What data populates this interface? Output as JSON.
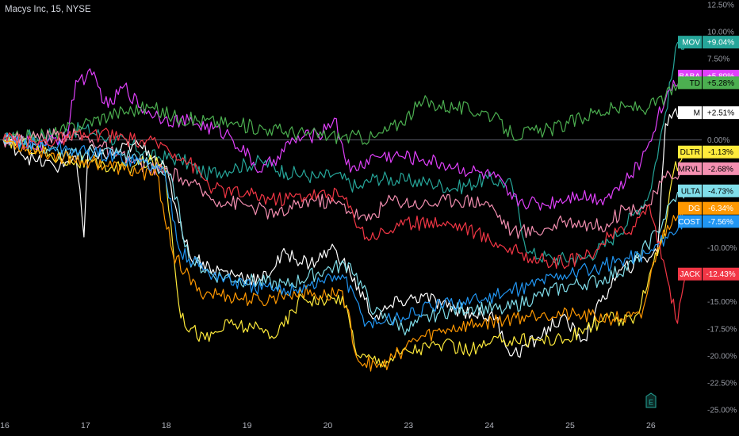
{
  "header": {
    "title": "Macys Inc, 15, NYSE"
  },
  "colors": {
    "background": "#000000",
    "zero_line": "#5d606b",
    "axis_text": "#9598a1"
  },
  "icons": {
    "bottom": "e-flag-icon"
  },
  "chart_data": {
    "type": "line",
    "title": "Macys Inc, 15, NYSE",
    "xlabel": "",
    "ylabel": "",
    "ylim": [
      -25,
      12.5
    ],
    "grid": false,
    "x_tick_labels": [
      "16",
      "17",
      "18",
      "19",
      "20",
      "23",
      "24",
      "25",
      "26"
    ],
    "x_tick_pos": [
      0,
      1,
      2,
      3,
      4,
      5,
      6,
      7,
      8
    ],
    "xlim": [
      0,
      8.6
    ],
    "y_tick_labels": [
      "12.50%",
      "10.00%",
      "7.50%",
      "0.00%",
      "-10.00%",
      "-15.00%",
      "-17.50%",
      "-20.00%",
      "-22.50%",
      "-25.00%"
    ],
    "y_tick_values": [
      12.5,
      10,
      7.5,
      0,
      -10,
      -15,
      -17.5,
      -20,
      -22.5,
      -25
    ],
    "series": [
      {
        "name": "MOV",
        "label": "+9.04%",
        "last": 9.04,
        "color": "#26a69a",
        "points": [
          [
            0,
            0
          ],
          [
            0.3,
            0.3
          ],
          [
            0.7,
            0.6
          ],
          [
            1.0,
            1.0
          ],
          [
            1.3,
            0.2
          ],
          [
            1.6,
            -0.5
          ],
          [
            1.8,
            -1.5
          ],
          [
            2.2,
            -1.8
          ],
          [
            2.5,
            -3.2
          ],
          [
            2.9,
            -2.5
          ],
          [
            3.2,
            -2.0
          ],
          [
            3.5,
            -3.0
          ],
          [
            3.9,
            -3.5
          ],
          [
            4.1,
            -3.2
          ],
          [
            4.4,
            -4.5
          ],
          [
            4.6,
            -3.5
          ],
          [
            5.0,
            -3.8
          ],
          [
            5.3,
            -4.0
          ],
          [
            5.6,
            -4.5
          ],
          [
            6.0,
            -3.6
          ],
          [
            6.3,
            -4.2
          ],
          [
            6.5,
            -10.5
          ],
          [
            6.8,
            -11.0
          ],
          [
            7.2,
            -11.0
          ],
          [
            7.5,
            -9.5
          ],
          [
            7.8,
            -7.0
          ],
          [
            8.0,
            -5.0
          ],
          [
            8.2,
            2.5
          ],
          [
            8.35,
            9.0
          ],
          [
            8.45,
            9.04
          ]
        ]
      },
      {
        "name": "BABA",
        "label": "+5.89%",
        "last": 5.89,
        "color": "#e040fb",
        "points": [
          [
            0,
            0
          ],
          [
            0.5,
            -0.5
          ],
          [
            0.8,
            0.5
          ],
          [
            0.9,
            5.5
          ],
          [
            1.1,
            6.0
          ],
          [
            1.3,
            3.0
          ],
          [
            1.5,
            5.0
          ],
          [
            1.7,
            3.0
          ],
          [
            2.0,
            2.0
          ],
          [
            2.4,
            1.5
          ],
          [
            2.8,
            0.5
          ],
          [
            3.2,
            -3.0
          ],
          [
            3.4,
            -1.5
          ],
          [
            3.6,
            0.0
          ],
          [
            3.9,
            0.5
          ],
          [
            4.1,
            2.0
          ],
          [
            4.3,
            -3.0
          ],
          [
            4.6,
            -1.5
          ],
          [
            4.9,
            -1.5
          ],
          [
            5.2,
            -1.8
          ],
          [
            5.6,
            -2.5
          ],
          [
            6.1,
            -3.5
          ],
          [
            6.3,
            -5.5
          ],
          [
            6.7,
            -6.0
          ],
          [
            7.1,
            -5.0
          ],
          [
            7.4,
            -5.5
          ],
          [
            7.7,
            -4.0
          ],
          [
            7.9,
            -2.0
          ],
          [
            8.1,
            2.0
          ],
          [
            8.3,
            5.5
          ],
          [
            8.45,
            5.89
          ]
        ]
      },
      {
        "name": "TD",
        "label": "+5.28%",
        "last": 5.28,
        "color": "#4caf50",
        "points": [
          [
            0,
            0
          ],
          [
            0.6,
            0.5
          ],
          [
            1.0,
            1.5
          ],
          [
            1.4,
            2.5
          ],
          [
            1.8,
            3.0
          ],
          [
            2.2,
            2.0
          ],
          [
            2.8,
            1.5
          ],
          [
            3.3,
            1.0
          ],
          [
            3.8,
            0.5
          ],
          [
            4.2,
            0.3
          ],
          [
            4.6,
            0.2
          ],
          [
            4.9,
            1.5
          ],
          [
            5.2,
            3.5
          ],
          [
            5.6,
            3.0
          ],
          [
            6.0,
            2.5
          ],
          [
            6.3,
            0.5
          ],
          [
            6.7,
            0.8
          ],
          [
            7.0,
            1.5
          ],
          [
            7.3,
            2.5
          ],
          [
            7.7,
            3.0
          ],
          [
            8.0,
            3.0
          ],
          [
            8.2,
            4.0
          ],
          [
            8.35,
            5.0
          ],
          [
            8.45,
            5.28
          ]
        ]
      },
      {
        "name": "M",
        "label": "+2.51%",
        "last": 2.51,
        "color": "#ffffff",
        "points": [
          [
            0,
            0
          ],
          [
            0.2,
            -1.0
          ],
          [
            0.4,
            -2.0
          ],
          [
            0.7,
            -2.5
          ],
          [
            0.9,
            -1.5
          ],
          [
            1.0,
            -9.0
          ],
          [
            1.05,
            -1.0
          ],
          [
            1.3,
            -1.5
          ],
          [
            1.6,
            -0.5
          ],
          [
            1.8,
            -1.0
          ],
          [
            2.0,
            -2.5
          ],
          [
            2.3,
            -10.5
          ],
          [
            2.6,
            -12.0
          ],
          [
            2.9,
            -12.5
          ],
          [
            3.2,
            -13.0
          ],
          [
            3.5,
            -10.5
          ],
          [
            3.8,
            -11.5
          ],
          [
            4.1,
            -10.0
          ],
          [
            4.3,
            -12.5
          ],
          [
            4.6,
            -16.5
          ],
          [
            4.9,
            -15.0
          ],
          [
            5.2,
            -14.5
          ],
          [
            5.5,
            -15.5
          ],
          [
            5.8,
            -16.0
          ],
          [
            6.1,
            -16.5
          ],
          [
            6.3,
            -20.0
          ],
          [
            6.6,
            -18.5
          ],
          [
            6.9,
            -16.5
          ],
          [
            7.2,
            -18.5
          ],
          [
            7.4,
            -15.0
          ],
          [
            7.6,
            -12.5
          ],
          [
            7.9,
            -11.0
          ],
          [
            8.1,
            -10.5
          ],
          [
            8.2,
            1.5
          ],
          [
            8.3,
            2.5
          ],
          [
            8.45,
            2.51
          ]
        ]
      },
      {
        "name": "DLTR",
        "label": "-1.13%",
        "last": -1.13,
        "color": "#ffeb3b",
        "points": [
          [
            0,
            0
          ],
          [
            0.3,
            -0.5
          ],
          [
            0.6,
            -1.5
          ],
          [
            0.9,
            -2.0
          ],
          [
            1.2,
            -2.5
          ],
          [
            1.6,
            -2.5
          ],
          [
            1.8,
            -2.0
          ],
          [
            2.0,
            -2.5
          ],
          [
            2.2,
            -16.5
          ],
          [
            2.5,
            -18.5
          ],
          [
            2.8,
            -17.0
          ],
          [
            3.1,
            -17.5
          ],
          [
            3.4,
            -18.0
          ],
          [
            3.7,
            -14.5
          ],
          [
            4.0,
            -15.0
          ],
          [
            4.2,
            -14.5
          ],
          [
            4.4,
            -20.0
          ],
          [
            4.7,
            -20.5
          ],
          [
            5.0,
            -19.5
          ],
          [
            5.4,
            -19.0
          ],
          [
            5.8,
            -19.5
          ],
          [
            6.2,
            -18.5
          ],
          [
            6.6,
            -18.5
          ],
          [
            7.0,
            -18.5
          ],
          [
            7.2,
            -17.5
          ],
          [
            7.5,
            -16.5
          ],
          [
            7.8,
            -17.0
          ],
          [
            8.0,
            -12.5
          ],
          [
            8.2,
            -8.0
          ],
          [
            8.3,
            -3.0
          ],
          [
            8.45,
            -1.13
          ]
        ]
      },
      {
        "name": "MRVL",
        "label": "-2.68%",
        "last": -2.68,
        "color": "#f48fb1",
        "points": [
          [
            0,
            0
          ],
          [
            0.4,
            0.2
          ],
          [
            0.8,
            0.5
          ],
          [
            1.1,
            0.0
          ],
          [
            1.4,
            -1.5
          ],
          [
            1.8,
            -2.5
          ],
          [
            2.2,
            -3.5
          ],
          [
            2.6,
            -5.5
          ],
          [
            3.0,
            -6.0
          ],
          [
            3.4,
            -7.0
          ],
          [
            3.8,
            -5.5
          ],
          [
            4.2,
            -6.0
          ],
          [
            4.5,
            -7.5
          ],
          [
            4.8,
            -5.5
          ],
          [
            5.2,
            -6.0
          ],
          [
            5.6,
            -5.5
          ],
          [
            6.0,
            -5.8
          ],
          [
            6.3,
            -8.5
          ],
          [
            6.6,
            -8.5
          ],
          [
            7.0,
            -7.5
          ],
          [
            7.4,
            -8.0
          ],
          [
            7.7,
            -6.5
          ],
          [
            8.0,
            -6.0
          ],
          [
            8.2,
            -3.5
          ],
          [
            8.45,
            -2.68
          ]
        ]
      },
      {
        "name": "ULTA",
        "label": "-4.73%",
        "last": -4.73,
        "color": "#80deea",
        "points": [
          [
            0,
            0
          ],
          [
            0.4,
            -0.5
          ],
          [
            0.8,
            -1.5
          ],
          [
            1.2,
            -1.0
          ],
          [
            1.6,
            -1.5
          ],
          [
            1.9,
            -2.5
          ],
          [
            2.1,
            -4.0
          ],
          [
            2.3,
            -11.0
          ],
          [
            2.6,
            -12.5
          ],
          [
            3.0,
            -13.0
          ],
          [
            3.5,
            -13.5
          ],
          [
            4.0,
            -12.0
          ],
          [
            4.3,
            -11.5
          ],
          [
            4.6,
            -16.0
          ],
          [
            5.0,
            -17.5
          ],
          [
            5.4,
            -16.0
          ],
          [
            5.8,
            -15.5
          ],
          [
            6.2,
            -15.8
          ],
          [
            6.6,
            -14.5
          ],
          [
            7.0,
            -13.5
          ],
          [
            7.4,
            -13.0
          ],
          [
            7.8,
            -11.5
          ],
          [
            8.1,
            -8.5
          ],
          [
            8.3,
            -5.5
          ],
          [
            8.45,
            -4.73
          ]
        ]
      },
      {
        "name": "DG",
        "label": "-6.34%",
        "last": -6.34,
        "color": "#ff9800",
        "points": [
          [
            0,
            0
          ],
          [
            0.3,
            -0.8
          ],
          [
            0.7,
            -1.5
          ],
          [
            1.1,
            -2.0
          ],
          [
            1.5,
            -2.8
          ],
          [
            1.9,
            -3.2
          ],
          [
            2.1,
            -10.5
          ],
          [
            2.4,
            -14.0
          ],
          [
            2.8,
            -14.5
          ],
          [
            3.2,
            -15.0
          ],
          [
            3.6,
            -14.0
          ],
          [
            4.0,
            -14.5
          ],
          [
            4.2,
            -14.0
          ],
          [
            4.4,
            -20.5
          ],
          [
            4.7,
            -21.0
          ],
          [
            5.1,
            -18.5
          ],
          [
            5.5,
            -17.5
          ],
          [
            5.9,
            -17.0
          ],
          [
            6.3,
            -16.5
          ],
          [
            6.7,
            -16.0
          ],
          [
            7.1,
            -16.3
          ],
          [
            7.5,
            -16.5
          ],
          [
            7.9,
            -16.5
          ],
          [
            8.1,
            -10.0
          ],
          [
            8.3,
            -7.0
          ],
          [
            8.45,
            -6.34
          ]
        ]
      },
      {
        "name": "COST",
        "label": "-7.56%",
        "last": -7.56,
        "color": "#2196f3",
        "points": [
          [
            0,
            0
          ],
          [
            0.5,
            -0.5
          ],
          [
            0.9,
            -1.0
          ],
          [
            1.3,
            -1.5
          ],
          [
            1.7,
            -2.0
          ],
          [
            2.0,
            -3.0
          ],
          [
            2.2,
            -10.5
          ],
          [
            2.6,
            -12.5
          ],
          [
            3.0,
            -13.5
          ],
          [
            3.4,
            -14.0
          ],
          [
            3.8,
            -13.5
          ],
          [
            4.2,
            -12.5
          ],
          [
            4.5,
            -17.0
          ],
          [
            4.9,
            -16.5
          ],
          [
            5.3,
            -15.5
          ],
          [
            5.7,
            -15.0
          ],
          [
            6.1,
            -14.5
          ],
          [
            6.5,
            -13.5
          ],
          [
            6.9,
            -12.5
          ],
          [
            7.3,
            -12.0
          ],
          [
            7.7,
            -11.0
          ],
          [
            8.0,
            -10.5
          ],
          [
            8.2,
            -9.0
          ],
          [
            8.45,
            -7.56
          ]
        ]
      },
      {
        "name": "JACK",
        "label": "-12.43%",
        "last": -12.43,
        "color": "#f23645",
        "points": [
          [
            0,
            0
          ],
          [
            0.4,
            -0.3
          ],
          [
            0.8,
            0.2
          ],
          [
            1.2,
            0.5
          ],
          [
            1.6,
            0.0
          ],
          [
            2.0,
            -0.5
          ],
          [
            2.3,
            -2.0
          ],
          [
            2.6,
            -4.5
          ],
          [
            3.0,
            -5.0
          ],
          [
            3.4,
            -5.5
          ],
          [
            3.8,
            -5.0
          ],
          [
            4.2,
            -5.2
          ],
          [
            4.5,
            -9.0
          ],
          [
            4.9,
            -8.0
          ],
          [
            5.3,
            -7.5
          ],
          [
            5.7,
            -8.0
          ],
          [
            6.1,
            -9.5
          ],
          [
            6.4,
            -10.5
          ],
          [
            6.8,
            -11.5
          ],
          [
            7.2,
            -11.0
          ],
          [
            7.5,
            -9.0
          ],
          [
            7.8,
            -8.0
          ],
          [
            8.0,
            -6.0
          ],
          [
            8.2,
            -12.0
          ],
          [
            8.35,
            -17.0
          ],
          [
            8.45,
            -12.43
          ]
        ]
      }
    ]
  }
}
